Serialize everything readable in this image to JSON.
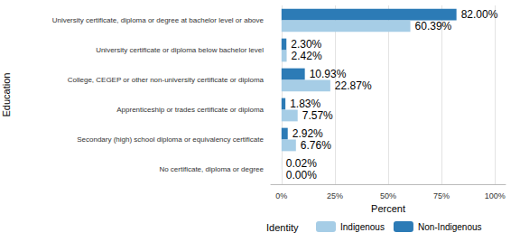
{
  "chart_data": {
    "type": "bar",
    "orientation": "horizontal",
    "xlabel": "Percent",
    "ylabel": "Education",
    "legend_title": "Identity",
    "legend": "bottom",
    "grid": true,
    "data_labels": true,
    "categories": [
      "University certificate, diploma or degree at bachelor level or above",
      "University certificate or diploma below bachelor level",
      "College, CEGEP or other non-university certificate or diploma",
      "Apprenticeship or trades certificate or diploma",
      "Secondary (high) school diploma or equivalency certificate",
      "No certificate, diploma or degree"
    ],
    "series": [
      {
        "name": "Indigenous",
        "color": "#a6cde6",
        "values": [
          60.39,
          2.42,
          22.87,
          7.57,
          6.76,
          0.0
        ],
        "value_labels": [
          "60.39%",
          "2.42%",
          "22.87%",
          "7.57%",
          "6.76%",
          "0.00%"
        ]
      },
      {
        "name": "Non-Indigenous",
        "color": "#2c7bb6",
        "values": [
          82.0,
          2.3,
          10.93,
          1.83,
          2.92,
          0.02
        ],
        "value_labels": [
          "82.00%",
          "2.30%",
          "10.93%",
          "1.83%",
          "2.92%",
          "0.02%"
        ]
      }
    ],
    "xlim": [
      -5,
      105
    ],
    "xticks": [
      {
        "value": 0,
        "label": "0%"
      },
      {
        "value": 25,
        "label": "25%"
      },
      {
        "value": 50,
        "label": "50%"
      },
      {
        "value": 75,
        "label": "75%"
      },
      {
        "value": 100,
        "label": "100%"
      }
    ]
  }
}
